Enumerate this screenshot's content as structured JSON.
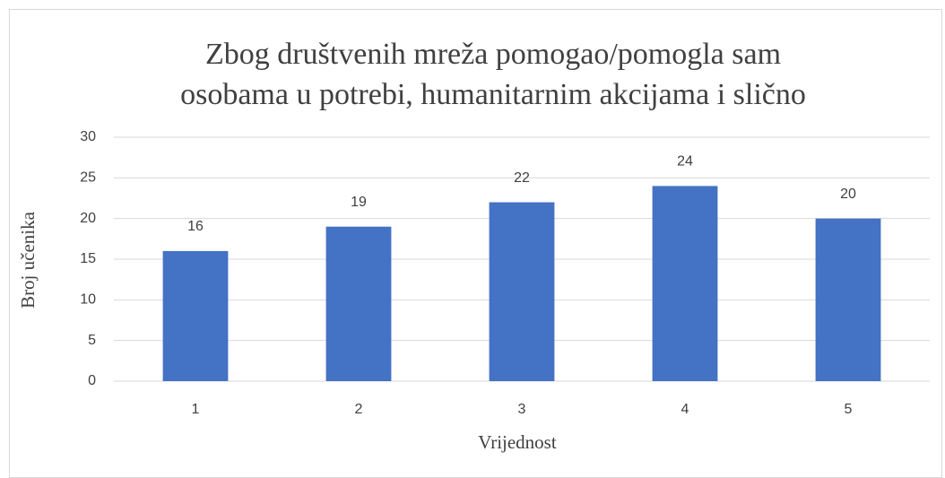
{
  "chart_data": {
    "type": "bar",
    "title": [
      "Zbog društvenih mreža pomogao/pomogla sam",
      "osobama u potrebi, humanitarnim akcijama i slično"
    ],
    "xlabel": "Vrijednost",
    "ylabel": "Broj učenika",
    "categories": [
      "1",
      "2",
      "3",
      "4",
      "5"
    ],
    "values": [
      16,
      19,
      22,
      24,
      20
    ],
    "color": "#4472c4",
    "ylim": [
      0,
      30
    ],
    "yticks": [
      0,
      5,
      10,
      15,
      20,
      25,
      30
    ],
    "grid": true
  }
}
